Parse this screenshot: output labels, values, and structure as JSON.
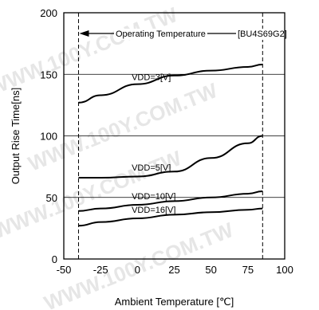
{
  "chart_data": {
    "type": "line",
    "xlabel": "Ambient Temperature [℃]",
    "ylabel": "Output Rise Time[ns]",
    "xlim": [
      -50,
      100
    ],
    "ylim": [
      0,
      200
    ],
    "xticks": [
      "-50",
      "-25",
      "0",
      "25",
      "50",
      "75",
      "100"
    ],
    "yticks": [
      "0",
      "50",
      "100",
      "150",
      "200"
    ],
    "grid": true,
    "annotations": {
      "range_label": "Operating Temperature",
      "part_label": "[BU4S69G2]",
      "range": [
        -40,
        85
      ]
    },
    "watermark": "WWW.100Y.COM.TW",
    "series": [
      {
        "name": "VDD=3[V]",
        "x": [
          -40,
          -25,
          0,
          25,
          50,
          75,
          85
        ],
        "y": [
          127,
          133,
          142,
          149,
          153,
          156,
          158
        ]
      },
      {
        "name": "VDD=5[V]",
        "x": [
          -40,
          -25,
          0,
          25,
          50,
          75,
          85
        ],
        "y": [
          66,
          66,
          67,
          71,
          82,
          94,
          100
        ]
      },
      {
        "name": "VDD=10[V]",
        "x": [
          -40,
          -25,
          0,
          25,
          50,
          75,
          85
        ],
        "y": [
          39,
          41,
          44,
          47,
          50,
          53,
          55
        ]
      },
      {
        "name": "VDD=16[V]",
        "x": [
          -40,
          -25,
          0,
          25,
          50,
          75,
          85
        ],
        "y": [
          27,
          30,
          33,
          36,
          38,
          40,
          41
        ]
      }
    ]
  }
}
